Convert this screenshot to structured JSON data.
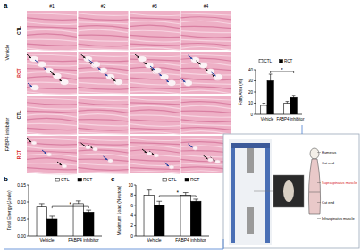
{
  "chart_data": [
    {
      "type": "bar",
      "y_label": "Fatty Area (%)",
      "categories": [
        "Vehicle",
        "FABP4 inhibitor"
      ],
      "series": [
        {
          "name": "CTL",
          "color": "#ffffff",
          "values": [
            8,
            10
          ],
          "errors": [
            2,
            1.5
          ]
        },
        {
          "name": "RCT",
          "color": "#000000",
          "values": [
            30,
            15
          ],
          "errors": [
            6,
            2
          ]
        }
      ],
      "ylim": [
        0,
        40
      ],
      "yticks": [
        0,
        10,
        20,
        30,
        40
      ],
      "grid": false,
      "annotation": "*"
    },
    {
      "type": "bar",
      "y_label": "Total Energy (Joule)",
      "categories": [
        "Vehicle",
        "FABP4 inhibitor"
      ],
      "series": [
        {
          "name": "CTL",
          "color": "#ffffff",
          "values": [
            0.085,
            0.095
          ],
          "errors": [
            0.01,
            0.008
          ]
        },
        {
          "name": "RCT",
          "color": "#000000",
          "values": [
            0.05,
            0.07
          ],
          "errors": [
            0.008,
            0.006
          ]
        }
      ],
      "ylim": [
        0,
        0.15
      ],
      "yticks": [
        {
          "value": 0,
          "label": "0.00"
        },
        {
          "value": 0.05,
          "label": "0.05"
        },
        {
          "value": 0.1,
          "label": "0.10"
        },
        {
          "value": 0.15,
          "label": "0.15"
        }
      ],
      "grid": false,
      "annotation": "*"
    },
    {
      "type": "bar",
      "y_label": "Maximum Load (Newton)",
      "categories": [
        "Vehicle",
        "FABP4 inhibitor"
      ],
      "series": [
        {
          "name": "CTL",
          "color": "#ffffff",
          "values": [
            8,
            8
          ],
          "errors": [
            1,
            0.5
          ]
        },
        {
          "name": "RCT",
          "color": "#000000",
          "values": [
            6,
            6.8
          ],
          "errors": [
            0.8,
            0.4
          ]
        }
      ],
      "ylim": [
        0,
        10
      ],
      "yticks": [
        0,
        2,
        4,
        6,
        8,
        10
      ],
      "grid": false,
      "annotation": "*"
    }
  ],
  "figure": {
    "panel_labels": [
      "a",
      "b",
      "c"
    ],
    "columns": [
      "#1",
      "#2",
      "#3",
      "#4"
    ],
    "groups": [
      "Vehicle",
      "FABP4 inhibitor"
    ],
    "rows": [
      "CTL",
      "RCT"
    ],
    "diagram_labels": [
      "Humerus",
      "Cut end",
      "Supraspinatus muscle",
      "Cut end",
      "Infraspinatus muscle"
    ]
  }
}
